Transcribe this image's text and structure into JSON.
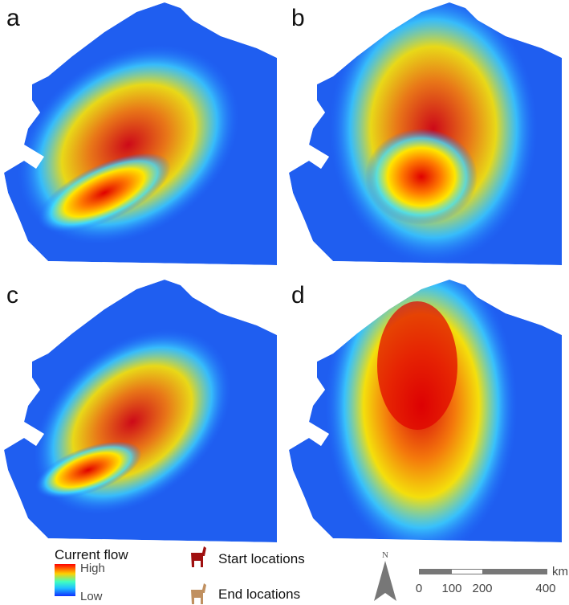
{
  "panels": [
    {
      "label": "a"
    },
    {
      "label": "b"
    },
    {
      "label": "c"
    },
    {
      "label": "d"
    }
  ],
  "legend": {
    "title": "Current flow",
    "high": "High",
    "low": "Low",
    "start": "Start locations",
    "end": "End locations"
  },
  "north": "N",
  "scale": {
    "unit": "km",
    "labels": [
      "0",
      "100",
      "200",
      "400"
    ]
  }
}
